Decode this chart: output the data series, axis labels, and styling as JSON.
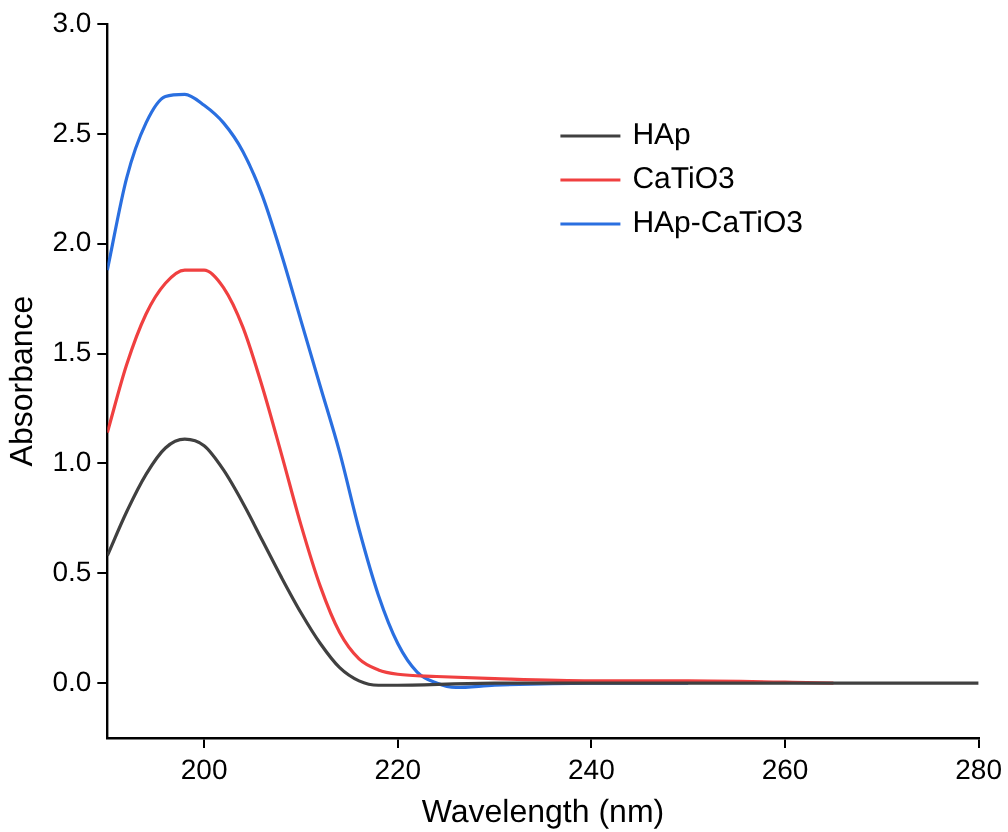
{
  "chart_data": {
    "type": "line",
    "xlabel": "Wavelength (nm)",
    "ylabel": "Absorbance",
    "xlim": [
      190,
      280
    ],
    "xticks": [
      200,
      220,
      240,
      260,
      280
    ],
    "ylim": [
      -0.25,
      3.0
    ],
    "yticks": [
      {
        "value": 0,
        "label": "0.0"
      },
      0.5,
      {
        "value": 1,
        "label": "1.0"
      },
      1.5,
      {
        "value": 2,
        "label": "2.0"
      },
      2.5,
      {
        "value": 3,
        "label": "3.0"
      }
    ],
    "grid": false,
    "legend": "top right",
    "marker": "none",
    "line_style": "solid",
    "series": [
      {
        "name": "HAp",
        "color": "#404040",
        "x": [
          190,
          192,
          194,
          196,
          198,
          200,
          202,
          204,
          206,
          208,
          210,
          212,
          214,
          216,
          218,
          220,
          230,
          240,
          250,
          260,
          270,
          280
        ],
        "values": [
          0.58,
          0.78,
          0.95,
          1.07,
          1.11,
          1.08,
          0.97,
          0.82,
          0.65,
          0.48,
          0.32,
          0.18,
          0.07,
          0.01,
          -0.01,
          -0.01,
          0,
          0,
          0,
          0,
          0,
          0
        ]
      },
      {
        "name": "CaTiO3",
        "color": "#f04040",
        "x": [
          190,
          192,
          194,
          196,
          198,
          200,
          202,
          204,
          206,
          208,
          210,
          212,
          214,
          216,
          218,
          220,
          224,
          230,
          240,
          250,
          265
        ],
        "values": [
          1.14,
          1.45,
          1.68,
          1.82,
          1.88,
          1.88,
          1.8,
          1.62,
          1.35,
          1.04,
          0.72,
          0.44,
          0.23,
          0.11,
          0.06,
          0.04,
          0.03,
          0.02,
          0.01,
          0.01,
          0
        ]
      },
      {
        "name": "HAp-CaTiO3",
        "color": "#2a6fe0",
        "x": [
          190,
          192,
          194,
          196,
          198,
          200,
          202,
          204,
          206,
          208,
          210,
          212,
          214,
          216,
          218,
          220,
          222,
          224,
          226,
          230,
          240,
          250
        ],
        "values": [
          1.88,
          2.3,
          2.55,
          2.67,
          2.68,
          2.63,
          2.55,
          2.42,
          2.22,
          1.95,
          1.65,
          1.35,
          1.05,
          0.7,
          0.4,
          0.18,
          0.05,
          0,
          -0.02,
          -0.01,
          0,
          0
        ]
      }
    ]
  }
}
